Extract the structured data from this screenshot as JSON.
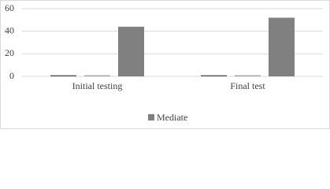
{
  "chart_data": {
    "type": "bar",
    "categories": [
      "Initial testing",
      "Final test"
    ],
    "series": [
      {
        "color": "#595959",
        "values": [
          1,
          1
        ]
      },
      {
        "color": "#a6a6a6",
        "values": [
          1,
          1
        ]
      },
      {
        "name": "Mediate",
        "color": "#808080",
        "values": [
          44,
          52
        ]
      }
    ],
    "ylim": [
      0,
      60
    ],
    "yticks": [
      0,
      20,
      40,
      60
    ],
    "grid": true,
    "legend": "bottom"
  }
}
